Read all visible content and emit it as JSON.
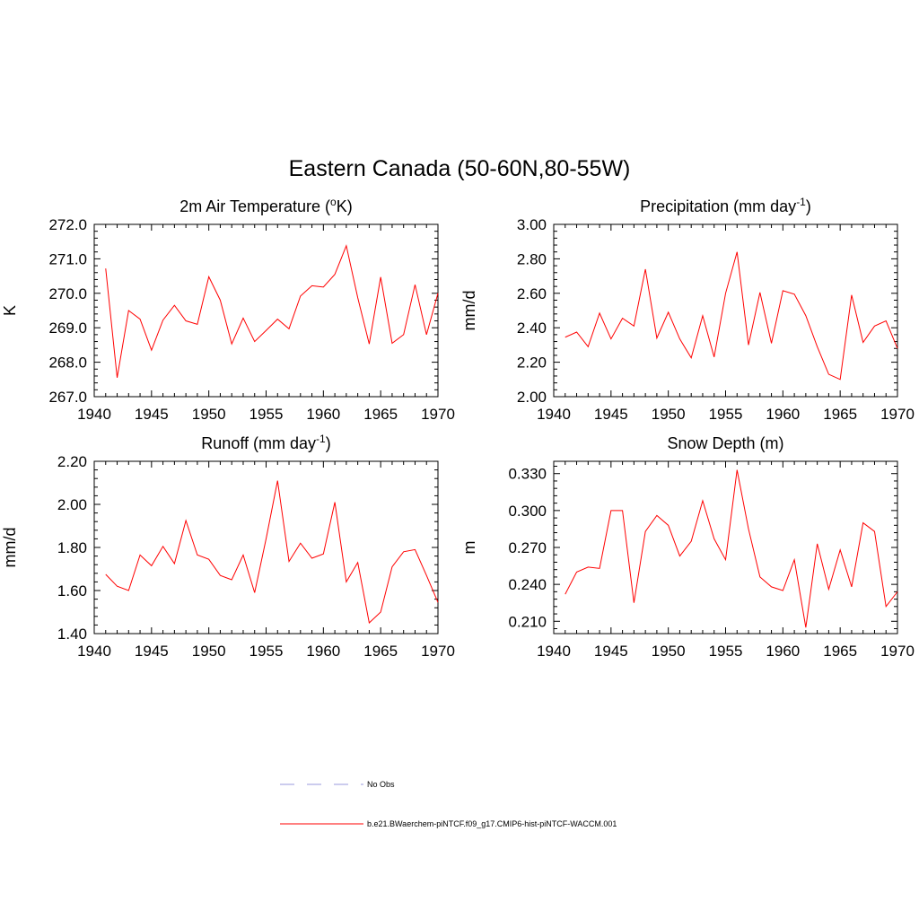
{
  "figure": {
    "title": "Eastern Canada (50-60N,80-55W)"
  },
  "legend": {
    "items": [
      {
        "label": "No Obs",
        "color": "#9999dd",
        "style": "dashed"
      },
      {
        "label": "b.e21.BWaerchem-piNTCF.f09_g17.CMIP6-hist-piNTCF-WACCM.001",
        "color": "#ff0000",
        "style": "solid"
      }
    ]
  },
  "chart_data": [
    {
      "type": "line",
      "title_parts": [
        "2m Air Temperature (",
        "o",
        "K)"
      ],
      "ylabel": "K",
      "xlim": [
        1940,
        1970
      ],
      "ylim": [
        267.0,
        272.0
      ],
      "xticks": [
        "1940",
        "1945",
        "1950",
        "1955",
        "1960",
        "1965",
        "1970"
      ],
      "yticks": [
        "267.0",
        "268.0",
        "269.0",
        "270.0",
        "271.0",
        "272.0"
      ],
      "series": [
        {
          "color": "#ff0000",
          "x": [
            1941,
            1942,
            1943,
            1944,
            1945,
            1946,
            1947,
            1948,
            1949,
            1950,
            1951,
            1952,
            1953,
            1954,
            1955,
            1956,
            1957,
            1958,
            1959,
            1960,
            1961,
            1962,
            1963,
            1964,
            1965,
            1966,
            1967,
            1968,
            1969,
            1970
          ],
          "y": [
            270.72,
            267.55,
            269.5,
            269.25,
            268.35,
            269.22,
            269.65,
            269.2,
            269.1,
            270.48,
            269.8,
            268.53,
            269.28,
            268.6,
            268.92,
            269.25,
            268.97,
            269.92,
            270.22,
            270.18,
            270.55,
            271.38,
            269.87,
            268.53,
            270.47,
            268.55,
            268.8,
            270.25,
            268.8,
            270.0
          ]
        }
      ]
    },
    {
      "type": "line",
      "title_parts": [
        "Precipitation (mm day",
        "-1",
        ")"
      ],
      "ylabel": "mm/d",
      "xlim": [
        1940,
        1970
      ],
      "ylim": [
        2.0,
        3.0
      ],
      "xticks": [
        "1940",
        "1945",
        "1950",
        "1955",
        "1960",
        "1965",
        "1970"
      ],
      "yticks": [
        "2.00",
        "2.20",
        "2.40",
        "2.60",
        "2.80",
        "3.00"
      ],
      "series": [
        {
          "color": "#ff0000",
          "x": [
            1941,
            1942,
            1943,
            1944,
            1945,
            1946,
            1947,
            1948,
            1949,
            1950,
            1951,
            1952,
            1953,
            1954,
            1955,
            1956,
            1957,
            1958,
            1959,
            1960,
            1961,
            1962,
            1963,
            1964,
            1965,
            1966,
            1967,
            1968,
            1969,
            1970
          ],
          "y": [
            2.345,
            2.375,
            2.29,
            2.485,
            2.335,
            2.455,
            2.41,
            2.74,
            2.34,
            2.49,
            2.335,
            2.225,
            2.47,
            2.23,
            2.6,
            2.84,
            2.3,
            2.605,
            2.31,
            2.615,
            2.595,
            2.47,
            2.29,
            2.13,
            2.1,
            2.59,
            2.315,
            2.41,
            2.44,
            2.28
          ]
        }
      ]
    },
    {
      "type": "line",
      "title_parts": [
        "Runoff (mm day",
        "-1",
        ")"
      ],
      "ylabel": "mm/d",
      "xlim": [
        1940,
        1970
      ],
      "ylim": [
        1.4,
        2.2
      ],
      "xticks": [
        "1940",
        "1945",
        "1950",
        "1955",
        "1960",
        "1965",
        "1970"
      ],
      "yticks": [
        "1.40",
        "1.60",
        "1.80",
        "2.00",
        "2.20"
      ],
      "series": [
        {
          "color": "#ff0000",
          "x": [
            1941,
            1942,
            1943,
            1944,
            1945,
            1946,
            1947,
            1948,
            1949,
            1950,
            1951,
            1952,
            1953,
            1954,
            1955,
            1956,
            1957,
            1958,
            1959,
            1960,
            1961,
            1962,
            1963,
            1964,
            1965,
            1966,
            1967,
            1968,
            1969,
            1970
          ],
          "y": [
            1.675,
            1.62,
            1.6,
            1.765,
            1.715,
            1.805,
            1.725,
            1.925,
            1.765,
            1.745,
            1.67,
            1.65,
            1.765,
            1.59,
            1.84,
            2.11,
            1.735,
            1.82,
            1.75,
            1.77,
            2.01,
            1.64,
            1.73,
            1.45,
            1.5,
            1.71,
            1.78,
            1.79,
            1.67,
            1.545
          ]
        }
      ]
    },
    {
      "type": "line",
      "title_parts": [
        "Snow Depth (m)"
      ],
      "ylabel": "m",
      "xlim": [
        1940,
        1970
      ],
      "ylim": [
        0.2,
        0.34
      ],
      "xticks": [
        "1940",
        "1945",
        "1950",
        "1955",
        "1960",
        "1965",
        "1970"
      ],
      "yticks": [
        "0.210",
        "0.240",
        "0.270",
        "0.300",
        "0.330"
      ],
      "ytick_values": [
        0.21,
        0.24,
        0.27,
        0.3,
        0.33
      ],
      "series": [
        {
          "color": "#ff0000",
          "x": [
            1941,
            1942,
            1943,
            1944,
            1945,
            1946,
            1947,
            1948,
            1949,
            1950,
            1951,
            1952,
            1953,
            1954,
            1955,
            1956,
            1957,
            1958,
            1959,
            1960,
            1961,
            1962,
            1963,
            1964,
            1965,
            1966,
            1967,
            1968,
            1969,
            1970
          ],
          "y": [
            0.232,
            0.25,
            0.254,
            0.253,
            0.3,
            0.3,
            0.225,
            0.283,
            0.296,
            0.288,
            0.263,
            0.275,
            0.308,
            0.277,
            0.26,
            0.333,
            0.285,
            0.246,
            0.238,
            0.235,
            0.26,
            0.205,
            0.273,
            0.236,
            0.268,
            0.238,
            0.29,
            0.283,
            0.222,
            0.234
          ]
        }
      ]
    }
  ]
}
